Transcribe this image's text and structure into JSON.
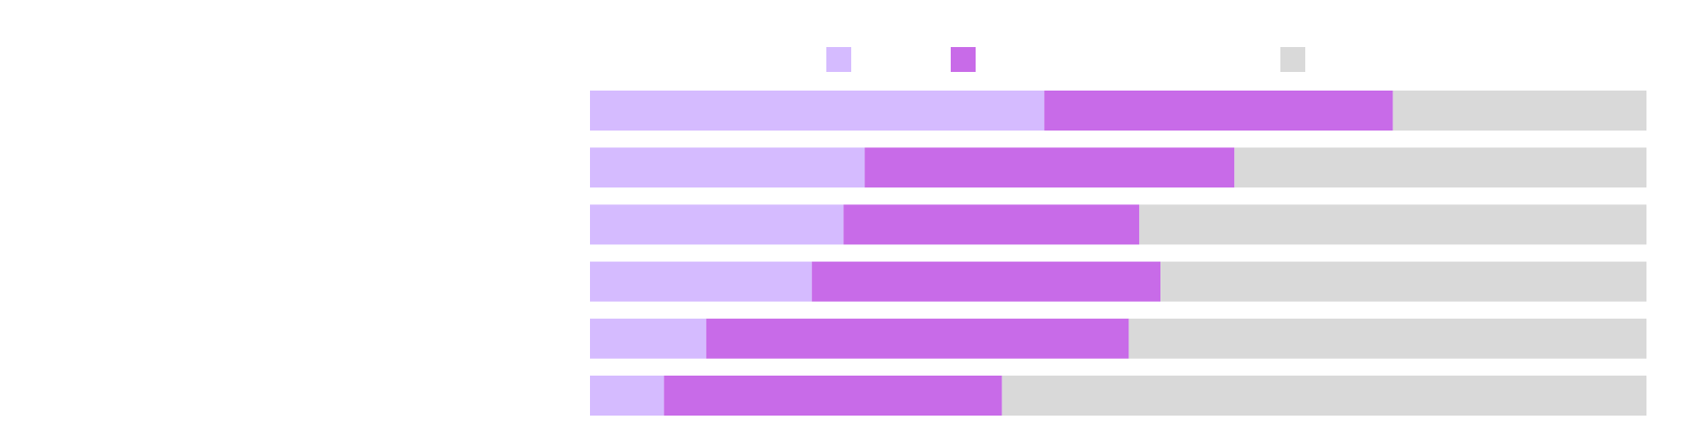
{
  "chart_data": {
    "type": "bar",
    "orientation": "horizontal",
    "stacked": true,
    "normalized_100_percent": true,
    "title": "",
    "xlabel": "",
    "ylabel": "",
    "xlim": [
      0,
      100
    ],
    "grid": false,
    "legend": "top-center",
    "categories": [
      "",
      "",
      "",
      "",
      "",
      ""
    ],
    "series": [
      {
        "color": "#d5bbff",
        "values": [
          43.0,
          26.0,
          24.0,
          21.0,
          11.0,
          7.0
        ]
      },
      {
        "color": "#c86be8",
        "values": [
          33.0,
          35.0,
          28.0,
          33.0,
          40.0,
          32.0
        ]
      },
      {
        "color": "#d9d9d9",
        "values": [
          24.0,
          39.0,
          48.0,
          46.0,
          49.0,
          61.0
        ]
      }
    ]
  }
}
